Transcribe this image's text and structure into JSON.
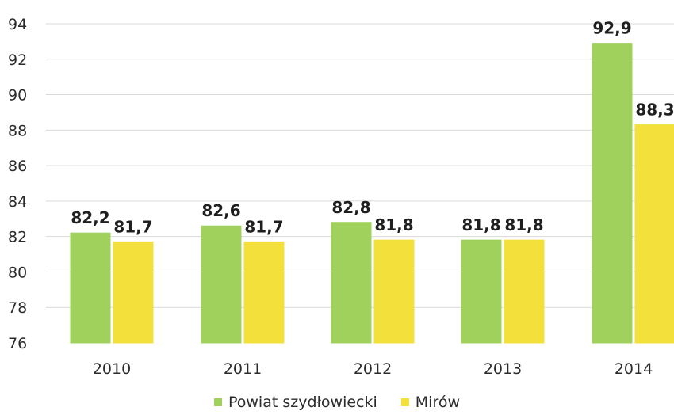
{
  "chart_data": {
    "type": "bar",
    "categories": [
      "2010",
      "2011",
      "2012",
      "2013",
      "2014"
    ],
    "series": [
      {
        "name": "Powiat szydłowiecki",
        "values": [
          82.2,
          82.6,
          82.8,
          81.8,
          92.9
        ],
        "labels": [
          "82,2",
          "82,6",
          "82,8",
          "81,8",
          "92,9"
        ],
        "color": "#9fd15c"
      },
      {
        "name": "Mirów",
        "values": [
          81.7,
          81.7,
          81.8,
          81.8,
          88.3
        ],
        "labels": [
          "81,7",
          "81,7",
          "81,8",
          "81,8",
          "88,3"
        ],
        "color": "#f3e03b"
      }
    ],
    "ylim": [
      76,
      94
    ],
    "yticks": [
      "76",
      "78",
      "80",
      "82",
      "84",
      "86",
      "88",
      "90",
      "92",
      "94"
    ],
    "grid": true,
    "legend_position": "bottom-center",
    "title": "",
    "xlabel": "",
    "ylabel": ""
  }
}
